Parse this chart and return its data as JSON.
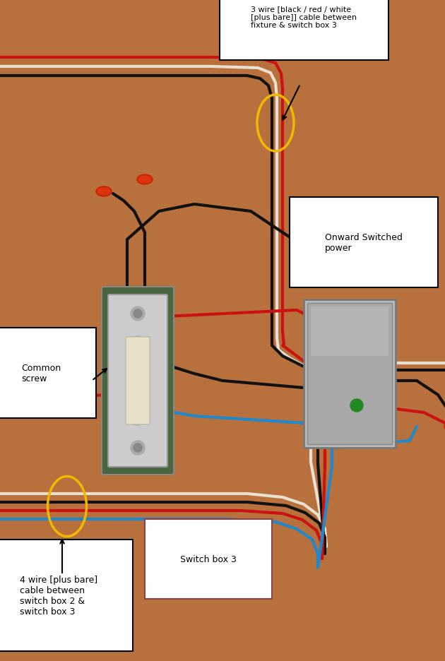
{
  "bg_color": "#b8703c",
  "annotation_3wire": "3 wire [black / red / white\n[plus bare]] cable between\nfixture & switch box 3",
  "annotation_onward": "Onward Switched\npower",
  "annotation_common": "Common\nscrew",
  "annotation_4wire": "4 wire [plus bare]\ncable between\nswitch box 2 &\nswitch box 3",
  "annotation_switchbox": "Switch box 3",
  "wire_red": "#cc1111",
  "wire_white": "#e8e0d0",
  "wire_black": "#111111",
  "wire_blue": "#2288cc",
  "wire_bare": "#c8a060",
  "yellow_oval": "#f0b800",
  "red_cap": "#cc2200"
}
